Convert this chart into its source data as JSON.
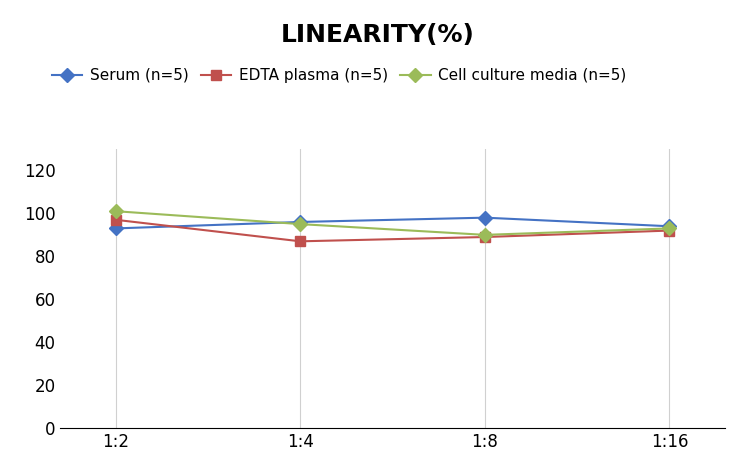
{
  "title": "LINEARITY(%)",
  "x_labels": [
    "1:2",
    "1:4",
    "1:8",
    "1:16"
  ],
  "series": [
    {
      "label": "Serum (n=5)",
      "values": [
        93,
        96,
        98,
        94
      ],
      "color": "#4472C4",
      "marker": "D"
    },
    {
      "label": "EDTA plasma (n=5)",
      "values": [
        97,
        87,
        89,
        92
      ],
      "color": "#C0504D",
      "marker": "s"
    },
    {
      "label": "Cell culture media (n=5)",
      "values": [
        101,
        95,
        90,
        93
      ],
      "color": "#9BBB59",
      "marker": "D"
    }
  ],
  "ylim": [
    0,
    130
  ],
  "yticks": [
    0,
    20,
    40,
    60,
    80,
    100,
    120
  ],
  "title_fontsize": 18,
  "legend_fontsize": 11,
  "tick_fontsize": 12,
  "background_color": "#ffffff",
  "grid_color": "#d0d0d0"
}
